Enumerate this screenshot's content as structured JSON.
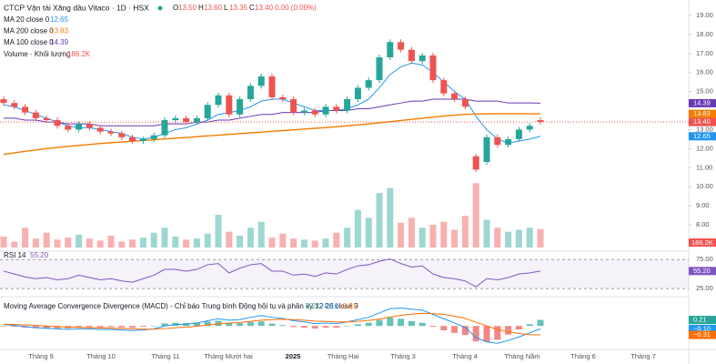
{
  "chart_data": {
    "type": "candlestick",
    "title": "CTCP Vận tải Xăng dầu Vitaco · 1D · HSX",
    "ohlc": [
      {
        "name": "O",
        "value": 13.5,
        "label": "13.50"
      },
      {
        "name": "H",
        "value": 13.6,
        "label": "13.60"
      },
      {
        "name": "L",
        "value": 13.35,
        "label": "13.35"
      },
      {
        "name": "C",
        "value": 13.4,
        "label": "13.40"
      }
    ],
    "change": "0.00 (0.00%)",
    "x_labels": [
      "Tháng 9",
      "Tháng 10",
      "Tháng 11",
      "Tháng Mười hai",
      "2025",
      "Tháng Hai",
      "Tháng 3",
      "Tháng 4",
      "Tháng Năm",
      "Tháng 6",
      "Tháng 7"
    ],
    "ylim": [
      8,
      19
    ],
    "yticks": [
      {
        "value": 19,
        "label": "19.00"
      },
      {
        "value": 18,
        "label": "18.00"
      },
      {
        "value": 17,
        "label": "17.00"
      },
      {
        "value": 16,
        "label": "16.00"
      },
      {
        "value": 15,
        "label": "15.00"
      },
      {
        "value": 13,
        "label": "13.00"
      },
      {
        "value": 12,
        "label": "12.00"
      },
      {
        "value": 11,
        "label": "11.00"
      },
      {
        "value": 10,
        "label": "10.00"
      },
      {
        "value": 9,
        "label": "9.00"
      },
      {
        "value": 8,
        "label": "8.00"
      }
    ],
    "up_color": "#26a69a",
    "down_color": "#ef5350",
    "open": [
      14.6,
      14.4,
      14.2,
      13.9,
      13.6,
      13.5,
      13.2,
      13.0,
      13.3,
      13.1,
      12.9,
      12.8,
      12.6,
      12.4,
      12.5,
      12.7,
      13.5,
      13.6,
      13.4,
      13.6,
      14.3,
      14.8,
      13.8,
      14.6,
      15.3,
      15.8,
      14.7,
      14.6,
      13.9,
      14.0,
      13.8,
      14.2,
      14.0,
      14.6,
      15.2,
      15.6,
      16.8,
      17.6,
      17.2,
      16.6,
      16.9,
      15.6,
      14.9,
      14.6,
      11.6,
      11.3,
      12.6,
      12.2,
      12.5,
      13.0,
      13.5
    ],
    "close": [
      14.4,
      14.2,
      13.9,
      13.6,
      13.5,
      13.2,
      13.0,
      13.3,
      13.1,
      12.9,
      12.8,
      12.6,
      12.4,
      12.5,
      12.7,
      13.5,
      13.6,
      13.4,
      13.6,
      14.3,
      14.8,
      13.8,
      14.6,
      15.3,
      15.8,
      14.7,
      14.6,
      13.9,
      14.0,
      13.8,
      14.2,
      14.0,
      14.6,
      15.2,
      15.6,
      16.8,
      17.6,
      17.2,
      16.6,
      16.9,
      15.6,
      14.9,
      14.6,
      14.2,
      10.9,
      12.6,
      12.2,
      12.5,
      13.0,
      13.2,
      13.4
    ],
    "series": [
      {
        "name": "MA 20 close 0",
        "color": "#2196f3",
        "last": 12.65,
        "last_label": "12.65",
        "values": [
          14.3,
          14.2,
          14.0,
          13.8,
          13.6,
          13.4,
          13.2,
          13.1,
          13.1,
          13.0,
          12.9,
          12.8,
          12.6,
          12.5,
          12.6,
          12.8,
          13.0,
          13.1,
          13.3,
          13.5,
          13.8,
          13.9,
          14.0,
          14.2,
          14.5,
          14.6,
          14.6,
          14.4,
          14.2,
          14.0,
          14.0,
          14.0,
          14.1,
          14.3,
          14.6,
          15.2,
          15.9,
          16.3,
          16.5,
          16.4,
          16.0,
          15.5,
          15.0,
          14.6,
          13.7,
          13.0,
          12.5,
          12.3,
          12.4,
          12.5,
          12.65
        ]
      },
      {
        "name": "MA 200 close 0",
        "color": "#f57c00",
        "last": 13.83,
        "last_label": "13.83",
        "values": [
          11.7,
          11.78,
          11.86,
          11.93,
          12.0,
          12.06,
          12.12,
          12.17,
          12.22,
          12.27,
          12.31,
          12.35,
          12.39,
          12.43,
          12.47,
          12.51,
          12.55,
          12.59,
          12.63,
          12.67,
          12.71,
          12.75,
          12.79,
          12.83,
          12.87,
          12.91,
          12.95,
          12.99,
          13.03,
          13.07,
          13.11,
          13.15,
          13.2,
          13.25,
          13.3,
          13.36,
          13.42,
          13.48,
          13.54,
          13.6,
          13.66,
          13.71,
          13.76,
          13.8,
          13.82,
          13.83,
          13.84,
          13.84,
          13.84,
          13.83,
          13.83
        ]
      },
      {
        "name": "MA 100 close 0",
        "color": "#673ab7",
        "last": 14.39,
        "last_label": "14.39",
        "values": [
          13.6,
          13.6,
          13.5,
          13.5,
          13.4,
          13.4,
          13.3,
          13.3,
          13.3,
          13.2,
          13.2,
          13.2,
          13.2,
          13.2,
          13.2,
          13.3,
          13.3,
          13.3,
          13.4,
          13.4,
          13.5,
          13.5,
          13.6,
          13.7,
          13.8,
          13.8,
          13.9,
          13.9,
          13.9,
          13.9,
          14.0,
          14.0,
          14.0,
          14.1,
          14.1,
          14.2,
          14.3,
          14.4,
          14.5,
          14.5,
          14.6,
          14.6,
          14.6,
          14.6,
          14.5,
          14.5,
          14.5,
          14.4,
          14.4,
          14.4,
          14.39
        ]
      }
    ],
    "last_price": {
      "value": 13.4,
      "label": "13.40"
    },
    "volume": {
      "name": "Volume · Khối lượng",
      "last_label": "186.2K",
      "ylim": [
        0,
        800
      ],
      "values": [
        110,
        60,
        200,
        90,
        150,
        80,
        100,
        130,
        90,
        70,
        120,
        60,
        80,
        100,
        150,
        200,
        110,
        80,
        90,
        140,
        330,
        160,
        120,
        200,
        260,
        100,
        140,
        90,
        80,
        70,
        90,
        150,
        200,
        380,
        300,
        550,
        600,
        250,
        300,
        200,
        230,
        260,
        180,
        320,
        650,
        280,
        200,
        160,
        180,
        200,
        186.2
      ]
    },
    "rsi": {
      "name": "RSI 14",
      "color": "#7e57c2",
      "last": 55.2,
      "last_label": "55.20",
      "ylim": [
        22,
        80
      ],
      "yticks": [
        {
          "value": 75,
          "label": "75.00"
        },
        {
          "value": 25,
          "label": "25.00"
        }
      ],
      "values": [
        55,
        50,
        45,
        42,
        44,
        40,
        42,
        48,
        44,
        40,
        42,
        38,
        36,
        42,
        48,
        58,
        58,
        55,
        58,
        66,
        68,
        52,
        60,
        66,
        68,
        55,
        55,
        48,
        50,
        46,
        52,
        50,
        58,
        64,
        66,
        72,
        76,
        68,
        62,
        64,
        50,
        44,
        42,
        38,
        28,
        42,
        40,
        44,
        50,
        52,
        55.2
      ]
    },
    "macd": {
      "name": "Moving Average Convergence Divergence (MACD) - Chỉ báo Trung bình Động hội tụ và phân kỳ 12 26 close 9",
      "ylim": [
        -0.75,
        0.7
      ],
      "hist": {
        "color": "#26a69a",
        "neg_color": "#ef5350",
        "last": 0.21,
        "last_label": "0.21",
        "values": [
          -0.01,
          -0.03,
          -0.06,
          -0.08,
          -0.08,
          -0.08,
          -0.08,
          -0.05,
          -0.04,
          -0.05,
          -0.04,
          -0.05,
          -0.06,
          -0.03,
          0.01,
          0.09,
          0.11,
          0.1,
          0.11,
          0.15,
          0.18,
          0.1,
          0.1,
          0.14,
          0.16,
          0.08,
          0.03,
          -0.04,
          -0.06,
          -0.09,
          -0.06,
          -0.06,
          0.0,
          0.06,
          0.11,
          0.21,
          0.29,
          0.25,
          0.17,
          0.11,
          -0.03,
          -0.15,
          -0.24,
          -0.31,
          -0.53,
          -0.55,
          -0.48,
          -0.3,
          -0.12,
          0.06,
          0.21
        ]
      },
      "line": {
        "color": "#2196f3",
        "last": -0.1,
        "last_label": "−0.10",
        "values": [
          0.05,
          0.02,
          -0.02,
          -0.06,
          -0.08,
          -0.1,
          -0.12,
          -0.1,
          -0.1,
          -0.12,
          -0.12,
          -0.14,
          -0.16,
          -0.14,
          -0.1,
          0.0,
          0.05,
          0.06,
          0.1,
          0.18,
          0.25,
          0.2,
          0.22,
          0.3,
          0.36,
          0.3,
          0.26,
          0.18,
          0.14,
          0.08,
          0.1,
          0.08,
          0.14,
          0.22,
          0.3,
          0.45,
          0.6,
          0.62,
          0.58,
          0.55,
          0.4,
          0.25,
          0.1,
          -0.05,
          -0.4,
          -0.55,
          -0.6,
          -0.5,
          -0.38,
          -0.24,
          -0.1
        ]
      },
      "signal": {
        "color": "#ff6d00",
        "last": -0.31,
        "last_label": "−0.31",
        "values": [
          0.06,
          0.05,
          0.04,
          0.02,
          0,
          -0.02,
          -0.04,
          -0.05,
          -0.06,
          -0.07,
          -0.08,
          -0.09,
          -0.1,
          -0.11,
          -0.11,
          -0.09,
          -0.06,
          -0.04,
          -0.01,
          0.03,
          0.07,
          0.1,
          0.12,
          0.16,
          0.2,
          0.22,
          0.23,
          0.22,
          0.2,
          0.17,
          0.16,
          0.14,
          0.14,
          0.16,
          0.19,
          0.24,
          0.31,
          0.37,
          0.41,
          0.44,
          0.43,
          0.4,
          0.34,
          0.26,
          0.13,
          0.0,
          -0.12,
          -0.2,
          -0.26,
          -0.3,
          -0.31
        ]
      }
    }
  }
}
